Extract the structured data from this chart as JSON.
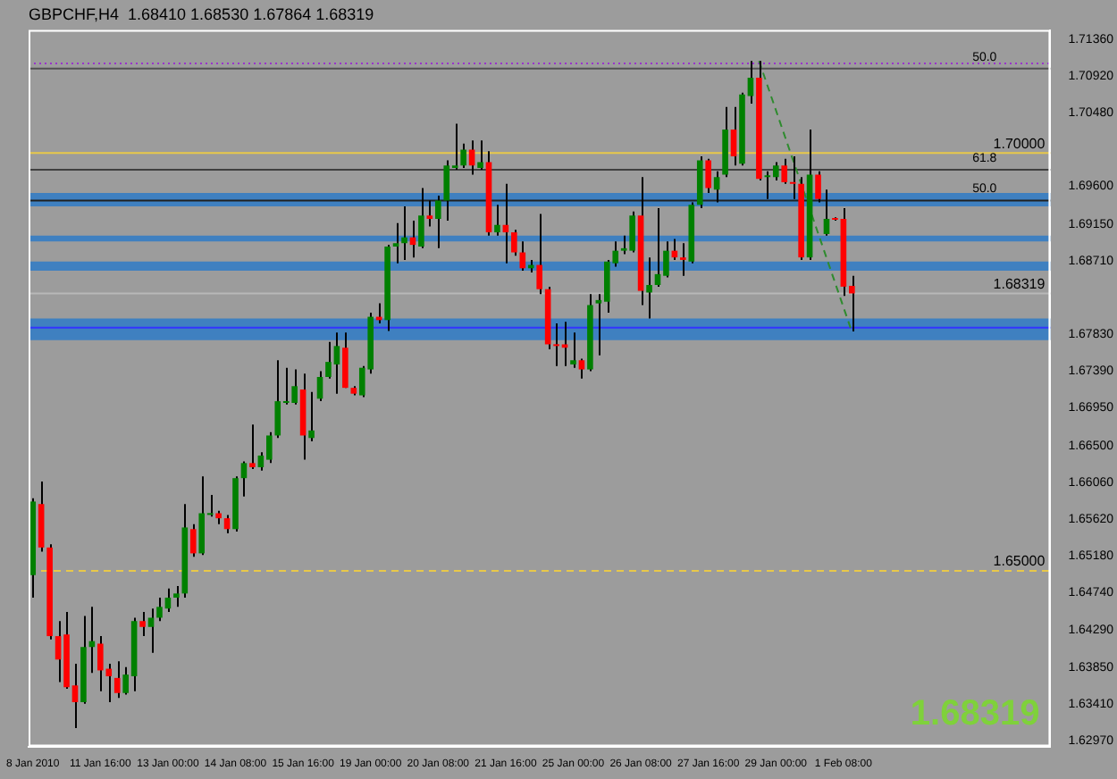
{
  "chart_data": {
    "type": "candlestick",
    "title": "GBPCHF,H4  1.68410 1.68530 1.67864 1.68319",
    "categories": [
      "8 Jan 2010",
      null,
      null,
      null,
      null,
      null,
      null,
      null,
      "11 Jan 16:00",
      null,
      null,
      null,
      null,
      null,
      null,
      null,
      "13 Jan 00:00",
      null,
      null,
      null,
      null,
      null,
      null,
      null,
      "14 Jan 08:00",
      null,
      null,
      null,
      null,
      null,
      null,
      null,
      "15 Jan 16:00",
      null,
      null,
      null,
      null,
      null,
      null,
      null,
      "19 Jan 00:00",
      null,
      null,
      null,
      null,
      null,
      null,
      null,
      "20 Jan 08:00",
      null,
      null,
      null,
      null,
      null,
      null,
      null,
      "21 Jan 16:00",
      null,
      null,
      null,
      null,
      null,
      null,
      null,
      "25 Jan 00:00",
      null,
      null,
      null,
      null,
      null,
      null,
      null,
      "26 Jan 08:00",
      null,
      null,
      null,
      null,
      null,
      null,
      null,
      "27 Jan 16:00",
      null,
      null,
      null,
      null,
      null,
      null,
      null,
      "29 Jan 00:00",
      null,
      null,
      null,
      null,
      null,
      null,
      null,
      "1 Feb 08:00",
      null,
      null,
      null,
      null,
      null,
      null,
      null,
      null,
      null,
      null,
      null,
      null,
      null,
      null,
      null,
      null,
      null,
      null,
      null,
      null,
      null,
      null,
      null,
      null
    ],
    "ohlc": [
      [
        1.6495,
        1.6587,
        1.6468,
        1.6583
      ],
      [
        1.658,
        1.6607,
        1.6523,
        1.6528
      ],
      [
        1.6528,
        1.6532,
        1.6418,
        1.6422
      ],
      [
        1.6422,
        1.644,
        1.6367,
        1.6394
      ],
      [
        1.6424,
        1.6451,
        1.6359,
        1.6361
      ],
      [
        1.6363,
        1.6389,
        1.6312,
        1.6343
      ],
      [
        1.6343,
        1.6446,
        1.6341,
        1.6409
      ],
      [
        1.6409,
        1.6457,
        1.6378,
        1.6416
      ],
      [
        1.6413,
        1.6422,
        1.6356,
        1.6381
      ],
      [
        1.6383,
        1.6389,
        1.6343,
        1.6374
      ],
      [
        1.6372,
        1.6392,
        1.6348,
        1.6354
      ],
      [
        1.6354,
        1.6385,
        1.6352,
        1.6376
      ],
      [
        1.6374,
        1.6444,
        1.6356,
        1.644
      ],
      [
        1.644,
        1.6451,
        1.6422,
        1.6433
      ],
      [
        1.6433,
        1.6455,
        1.6402,
        1.6444
      ],
      [
        1.6444,
        1.6468,
        1.644,
        1.6457
      ],
      [
        1.6455,
        1.6479,
        1.6451,
        1.6468
      ],
      [
        1.6468,
        1.6482,
        1.6457,
        1.6473
      ],
      [
        1.6473,
        1.658,
        1.6468,
        1.6552
      ],
      [
        1.655,
        1.6556,
        1.6517,
        1.6521
      ],
      [
        1.6521,
        1.6613,
        1.6519,
        1.6569
      ],
      [
        1.6567,
        1.6591,
        1.6565,
        1.6569
      ],
      [
        1.6569,
        1.6572,
        1.6556,
        1.6563
      ],
      [
        1.6563,
        1.6567,
        1.6545,
        1.655
      ],
      [
        1.655,
        1.6613,
        1.6547,
        1.6611
      ],
      [
        1.6611,
        1.6631,
        1.6589,
        1.6629
      ],
      [
        1.6629,
        1.6675,
        1.6622,
        1.6624
      ],
      [
        1.6624,
        1.6642,
        1.662,
        1.6638
      ],
      [
        1.6633,
        1.6666,
        1.6629,
        1.6662
      ],
      [
        1.6662,
        1.6752,
        1.6659,
        1.6703
      ],
      [
        1.6701,
        1.6743,
        1.6699,
        1.6703
      ],
      [
        1.6701,
        1.6741,
        1.6699,
        1.6721
      ],
      [
        1.6717,
        1.6736,
        1.6633,
        1.6662
      ],
      [
        1.6659,
        1.6714,
        1.6655,
        1.6668
      ],
      [
        1.6706,
        1.6739,
        1.6703,
        1.6732
      ],
      [
        1.6732,
        1.6774,
        1.673,
        1.675
      ],
      [
        1.6747,
        1.6785,
        1.6712,
        1.6769
      ],
      [
        1.6767,
        1.6785,
        1.6719,
        1.6719
      ],
      [
        1.6719,
        1.6721,
        1.671,
        1.6712
      ],
      [
        1.671,
        1.6745,
        1.6708,
        1.6743
      ],
      [
        1.6741,
        1.6809,
        1.6736,
        1.6804
      ],
      [
        1.6804,
        1.682,
        1.6796,
        1.68
      ],
      [
        1.68,
        1.689,
        1.6787,
        1.6888
      ],
      [
        1.6888,
        1.6916,
        1.6868,
        1.6892
      ],
      [
        1.6892,
        1.6936,
        1.6872,
        1.6899
      ],
      [
        1.6899,
        1.6919,
        1.6875,
        1.689
      ],
      [
        1.6888,
        1.6958,
        1.6886,
        1.6925
      ],
      [
        1.6925,
        1.6943,
        1.6912,
        1.6921
      ],
      [
        1.6921,
        1.6949,
        1.6886,
        1.6943
      ],
      [
        1.6943,
        1.6991,
        1.6919,
        1.6985
      ],
      [
        1.6982,
        1.7035,
        1.698,
        1.6985
      ],
      [
        1.6985,
        1.7011,
        1.6982,
        1.7004
      ],
      [
        1.7004,
        1.7015,
        1.6974,
        1.6985
      ],
      [
        1.6982,
        1.7015,
        1.698,
        1.6989
      ],
      [
        1.6989,
        1.7002,
        1.6901,
        1.6905
      ],
      [
        1.6905,
        1.6938,
        1.6901,
        1.6914
      ],
      [
        1.6914,
        1.6963,
        1.6868,
        1.6905
      ],
      [
        1.6905,
        1.6908,
        1.6877,
        1.6881
      ],
      [
        1.6881,
        1.6894,
        1.6859,
        1.6862
      ],
      [
        1.6862,
        1.6872,
        1.6857,
        1.6866
      ],
      [
        1.6866,
        1.6927,
        1.6831,
        1.6837
      ],
      [
        1.6837,
        1.684,
        1.6765,
        1.6771
      ],
      [
        1.6771,
        1.6796,
        1.6745,
        1.6769
      ],
      [
        1.6771,
        1.6798,
        1.6745,
        1.6767
      ],
      [
        1.6747,
        1.6785,
        1.6743,
        1.6752
      ],
      [
        1.6752,
        1.6754,
        1.673,
        1.6741
      ],
      [
        1.6741,
        1.6831,
        1.6739,
        1.6818
      ],
      [
        1.682,
        1.6831,
        1.6758,
        1.6824
      ],
      [
        1.6822,
        1.6872,
        1.6809,
        1.687
      ],
      [
        1.6868,
        1.6894,
        1.6864,
        1.6883
      ],
      [
        1.6883,
        1.6901,
        1.6879,
        1.6886
      ],
      [
        1.6883,
        1.693,
        1.6881,
        1.6925
      ],
      [
        1.6925,
        1.6971,
        1.6818,
        1.6835
      ],
      [
        1.6833,
        1.6875,
        1.6802,
        1.6842
      ],
      [
        1.6842,
        1.6934,
        1.684,
        1.6855
      ],
      [
        1.6853,
        1.6894,
        1.6851,
        1.6883
      ],
      [
        1.6883,
        1.6897,
        1.6872,
        1.6875
      ],
      [
        1.6875,
        1.6892,
        1.6853,
        1.6872
      ],
      [
        1.687,
        1.6941,
        1.6868,
        1.6938
      ],
      [
        1.6938,
        1.6996,
        1.6934,
        1.6991
      ],
      [
        1.6991,
        1.6993,
        1.6952,
        1.6958
      ],
      [
        1.6956,
        1.6978,
        1.6941,
        1.6971
      ],
      [
        1.6974,
        1.7055,
        1.6971,
        1.7028
      ],
      [
        1.7028,
        1.7055,
        1.6985,
        1.6996
      ],
      [
        1.6987,
        1.7072,
        1.6985,
        1.707
      ],
      [
        1.7068,
        1.711,
        1.7059,
        1.709
      ],
      [
        1.709,
        1.711,
        1.6967,
        1.6969
      ],
      [
        1.6971,
        1.6978,
        1.6945,
        1.6973
      ],
      [
        1.6971,
        1.6989,
        1.6967,
        1.6985
      ],
      [
        1.6985,
        1.6993,
        1.6963,
        1.6965
      ],
      [
        1.6965,
        1.6996,
        1.6945,
        1.6963
      ],
      [
        1.6963,
        1.6971,
        1.6872,
        1.6875
      ],
      [
        1.6875,
        1.7028,
        1.6872,
        1.6974
      ],
      [
        1.6974,
        1.6978,
        1.6941,
        1.6945
      ],
      [
        1.6903,
        1.6956,
        1.6901,
        1.6921
      ],
      [
        1.6921,
        1.6923,
        1.6919,
        1.692
      ],
      [
        1.6921,
        1.6934,
        1.6829,
        1.684
      ],
      [
        1.6841,
        1.6853,
        1.67864,
        1.68319
      ],
      null,
      null,
      null,
      null,
      null,
      null,
      null,
      null,
      null,
      null,
      null,
      null,
      null,
      null,
      null,
      null,
      null,
      null,
      null,
      null,
      null,
      null,
      null
    ],
    "colors": [
      "#008000",
      "#ff0000",
      "#ff0000",
      "#ff0000",
      "#ff0000",
      "#ff0000",
      "#008000",
      "#008000",
      "#ff0000",
      "#ff0000",
      "#ff0000",
      "#008000",
      "#008000",
      "#ff0000",
      "#008000",
      "#008000",
      "#008000",
      "#008000",
      "#008000",
      "#ff0000",
      "#008000",
      "#008000",
      "#ff0000",
      "#ff0000",
      "#008000",
      "#008000",
      "#ff0000",
      "#008000",
      "#008000",
      "#008000",
      "#008000",
      "#008000",
      "#ff0000",
      "#008000",
      "#008000",
      "#008000",
      "#008000",
      "#ff0000",
      "#ff0000",
      "#008000",
      "#008000",
      "#ff0000",
      "#008000",
      "#008000",
      "#008000",
      "#ff0000",
      "#008000",
      "#ff0000",
      "#008000",
      "#008000",
      "#008000",
      "#008000",
      "#ff0000",
      "#008000",
      "#ff0000",
      "#008000",
      "#ff0000",
      "#ff0000",
      "#ff0000",
      "#008000",
      "#ff0000",
      "#ff0000",
      "#ff0000",
      "#ff0000",
      "#008000",
      "#ff0000",
      "#008000",
      "#008000",
      "#008000",
      "#008000",
      "#008000",
      "#008000",
      "#ff0000",
      "#008000",
      "#008000",
      "#008000",
      "#ff0000",
      "#ff0000",
      "#008000",
      "#008000",
      "#ff0000",
      "#008000",
      "#008000",
      "#ff0000",
      "#008000",
      "#008000",
      "#ff0000",
      "#008000",
      "#008000",
      "#ff0000",
      "#ff0000",
      "#ff0000",
      "#008000",
      "#ff0000",
      "#008000",
      "#ff0000",
      "#ff0000",
      "#ff0000",
      null,
      null,
      null,
      null,
      null,
      null,
      null,
      null,
      null,
      null,
      null,
      null,
      null,
      null,
      null,
      null,
      null,
      null,
      null,
      null,
      null,
      null,
      null
    ],
    "series": [
      {
        "type": "line",
        "color": "#2e8b2e",
        "line_style": "dashed",
        "values": [
          null,
          null,
          null,
          null,
          null,
          null,
          null,
          null,
          null,
          null,
          null,
          null,
          null,
          null,
          null,
          null,
          null,
          null,
          null,
          null,
          null,
          null,
          null,
          null,
          null,
          null,
          null,
          null,
          null,
          null,
          null,
          null,
          null,
          null,
          null,
          null,
          null,
          null,
          null,
          null,
          null,
          null,
          null,
          null,
          null,
          null,
          null,
          null,
          null,
          null,
          null,
          null,
          null,
          null,
          null,
          null,
          null,
          null,
          null,
          null,
          null,
          null,
          null,
          null,
          null,
          null,
          null,
          null,
          null,
          null,
          null,
          null,
          null,
          null,
          null,
          null,
          null,
          null,
          null,
          null,
          null,
          null,
          null,
          null,
          null,
          null,
          1.711,
          null,
          null,
          null,
          null,
          null,
          null,
          null,
          null,
          null,
          null,
          1.6786,
          null,
          null,
          null,
          null,
          null,
          null,
          null,
          null,
          null,
          null,
          null,
          null,
          null,
          null,
          null,
          null,
          null,
          null,
          null,
          null,
          null,
          null,
          null
        ]
      }
    ],
    "ylim": [
      1.629,
      1.7147
    ],
    "yticks": [
      {
        "value": 1.7136,
        "label": "1.71360"
      },
      {
        "value": 1.7092,
        "label": "1.70920"
      },
      {
        "value": 1.7048,
        "label": "1.70480"
      },
      {
        "value": 1.696,
        "label": "1.69600"
      },
      {
        "value": 1.6915,
        "label": "1.69150"
      },
      {
        "value": 1.6871,
        "label": "1.68710"
      },
      {
        "value": 1.6783,
        "label": "1.67830"
      },
      {
        "value": 1.6739,
        "label": "1.67390"
      },
      {
        "value": 1.6695,
        "label": "1.66950"
      },
      {
        "value": 1.665,
        "label": "1.66500"
      },
      {
        "value": 1.6606,
        "label": "1.66060"
      },
      {
        "value": 1.6562,
        "label": "1.65620"
      },
      {
        "value": 1.6518,
        "label": "1.65180"
      },
      {
        "value": 1.6474,
        "label": "1.64740"
      },
      {
        "value": 1.6429,
        "label": "1.64290"
      },
      {
        "value": 1.6385,
        "label": "1.63850"
      },
      {
        "value": 1.6341,
        "label": "1.63410"
      },
      {
        "value": 1.6297,
        "label": "1.62970"
      }
    ],
    "bands": [
      {
        "axis": "y",
        "from": 1.6936,
        "to": 1.6952,
        "color": "#3f80c0"
      },
      {
        "axis": "y",
        "from": 1.6894,
        "to": 1.6901,
        "color": "#3f80c0"
      },
      {
        "axis": "y",
        "from": 1.6859,
        "to": 1.687,
        "color": "#3f80c0"
      },
      {
        "axis": "y",
        "from": 1.6776,
        "to": 1.6802,
        "color": "#3f80c0"
      }
    ],
    "ref_lines": [
      {
        "axis": "y",
        "value": 1.7107,
        "color": "#9933cc",
        "line_style": "dotted"
      },
      {
        "axis": "y",
        "value": 1.7101,
        "color": "#505050"
      },
      {
        "axis": "y",
        "value": 1.7,
        "label": "1.70000",
        "color": "#e8c84a"
      },
      {
        "axis": "y",
        "value": 1.698,
        "color": "#404040"
      },
      {
        "axis": "y",
        "value": 1.6943,
        "color": "#202020"
      },
      {
        "axis": "y",
        "value": 1.68319,
        "label": "1.68319",
        "color": "#b8b8b8"
      },
      {
        "axis": "y",
        "value": 1.6791,
        "color": "#3333ff"
      },
      {
        "axis": "y",
        "value": 1.65,
        "label": "1.65000",
        "color": "#e8c84a",
        "line_style": "dashed"
      }
    ],
    "annotations": [
      {
        "text": "50.0",
        "y": 1.7101
      },
      {
        "text": "61.8",
        "y": 1.698
      },
      {
        "text": "50.0",
        "y": 1.6943
      },
      "1.68319"
    ],
    "grid": false
  }
}
